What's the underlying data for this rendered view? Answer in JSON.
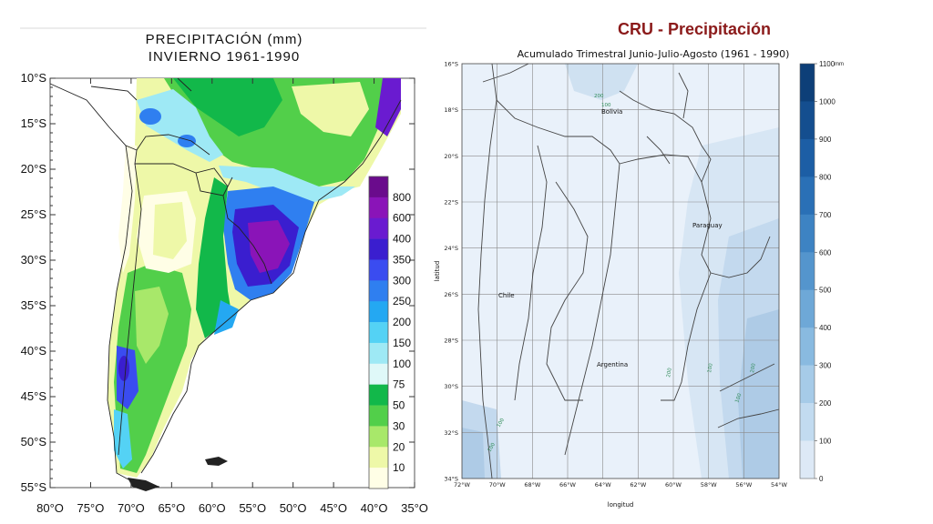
{
  "left_map": {
    "title_line1": "PRECIPITACIÓN  (mm)",
    "title_line2": "INVIERNO  1961-1990",
    "lat_labels": [
      "10°S",
      "15°S",
      "20°S",
      "25°S",
      "30°S",
      "35°S",
      "40°S",
      "45°S",
      "50°S",
      "55°S"
    ],
    "lon_labels": [
      "80°O",
      "75°O",
      "70°O",
      "65°O",
      "60°O",
      "55°O",
      "50°O",
      "45°O",
      "40°O",
      "35°O"
    ],
    "colorbar": [
      {
        "label": "800",
        "color": "#6a0b8c"
      },
      {
        "label": "600",
        "color": "#8a14b8"
      },
      {
        "label": "400",
        "color": "#6a1bd0"
      },
      {
        "label": "350",
        "color": "#3a1ecf"
      },
      {
        "label": "300",
        "color": "#3a4cf0"
      },
      {
        "label": "250",
        "color": "#2f7ff0"
      },
      {
        "label": "200",
        "color": "#24a8f2"
      },
      {
        "label": "150",
        "color": "#54d2f5"
      },
      {
        "label": "100",
        "color": "#9ee9f5"
      },
      {
        "label": "75",
        "color": "#dff8f8"
      },
      {
        "label": "50",
        "color": "#12b84a"
      },
      {
        "label": "30",
        "color": "#52cf4a"
      },
      {
        "label": "20",
        "color": "#a8e86a"
      },
      {
        "label": "10",
        "color": "#eef8a8"
      },
      {
        "label": "",
        "color": "#fffee6"
      }
    ]
  },
  "right_map": {
    "title": "CRU - Precipitación",
    "subtitle": "Acumulado Trimestral Junio-Julio-Agosto (1961 - 1990)",
    "ylabel": "latitud",
    "xlabel": "longitud",
    "lat_labels": [
      "16°S",
      "18°S",
      "20°S",
      "22°S",
      "24°S",
      "26°S",
      "28°S",
      "30°S",
      "32°S",
      "34°S"
    ],
    "lon_labels": [
      "72°W",
      "70°W",
      "68°W",
      "66°W",
      "64°W",
      "62°W",
      "60°W",
      "58°W",
      "56°W",
      "54°W"
    ],
    "place_labels": [
      "Bolivia",
      "Paraguay",
      "Chile",
      "Argentina"
    ],
    "contour_labels": [
      "200",
      "100",
      "100",
      "200",
      "200",
      "100",
      "100",
      "100"
    ],
    "colorbar_unit": "mm",
    "colorbar_labels": [
      "1100",
      "1000",
      "900",
      "800",
      "700",
      "600",
      "500",
      "400",
      "300",
      "200",
      "100",
      "0"
    ]
  }
}
